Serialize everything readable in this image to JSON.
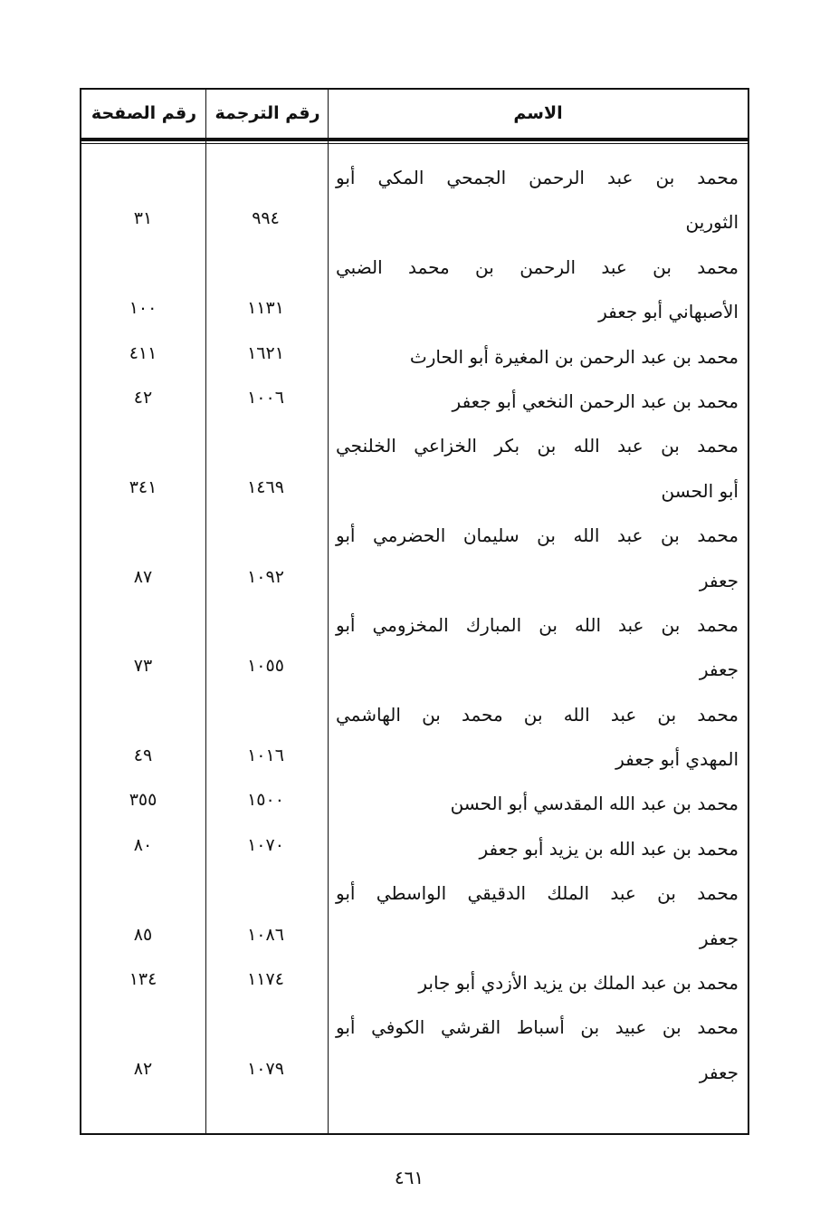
{
  "table": {
    "headers": {
      "name": "الاسم",
      "translation_no": "رقم الترجمة",
      "page_no": "رقم الصفحة"
    },
    "rows": [
      {
        "lines": [
          "محمد بن عبد الرحمن الجمحي المكي أبو",
          "الثورين"
        ],
        "translation_no": "٩٩٤",
        "page_no": "٣١"
      },
      {
        "lines": [
          "محمد بن عبد الرحمن بن محمد الضبي",
          "الأصبهاني أبو جعفر"
        ],
        "translation_no": "١١٣١",
        "page_no": "١٠٠"
      },
      {
        "lines": [
          "محمد بن عبد الرحمن بن المغيرة أبو الحارث"
        ],
        "translation_no": "١٦٢١",
        "page_no": "٤١١"
      },
      {
        "lines": [
          "محمد بن عبد الرحمن النخعي أبو جعفر"
        ],
        "translation_no": "١٠٠٦",
        "page_no": "٤٢"
      },
      {
        "lines": [
          "محمد بن عبد الله بن بكر الخزاعي الخلنجي",
          "أبو الحسن"
        ],
        "translation_no": "١٤٦٩",
        "page_no": "٣٤١"
      },
      {
        "lines": [
          "محمد بن عبد الله بن سليمان الحضرمي أبو",
          "جعفر"
        ],
        "translation_no": "١٠٩٢",
        "page_no": "٨٧"
      },
      {
        "lines": [
          "محمد بن عبد الله بن المبارك المخزومي أبو",
          "جعفر"
        ],
        "translation_no": "١٠٥٥",
        "page_no": "٧٣"
      },
      {
        "lines": [
          "محمد بن عبد الله بن محمد بن الهاشمي",
          "المهدي أبو جعفر"
        ],
        "translation_no": "١٠١٦",
        "page_no": "٤٩"
      },
      {
        "lines": [
          "محمد بن عبد الله المقدسي أبو الحسن"
        ],
        "translation_no": "١٥٠٠",
        "page_no": "٣٥٥"
      },
      {
        "lines": [
          "محمد بن عبد الله بن يزيد أبو جعفر"
        ],
        "translation_no": "١٠٧٠",
        "page_no": "٨٠"
      },
      {
        "lines": [
          "محمد بن عبد الملك الدقيقي الواسطي أبو",
          "جعفر"
        ],
        "translation_no": "١٠٨٦",
        "page_no": "٨٥"
      },
      {
        "lines": [
          "محمد بن عبد الملك بن يزيد الأزدي أبو جابر"
        ],
        "translation_no": "١١٧٤",
        "page_no": "١٣٤"
      },
      {
        "lines": [
          "محمد بن عبيد بن أسباط القرشي الكوفي أبو",
          "جعفر"
        ],
        "translation_no": "١٠٧٩",
        "page_no": "٨٢"
      }
    ]
  },
  "page_number": "٤٦١"
}
